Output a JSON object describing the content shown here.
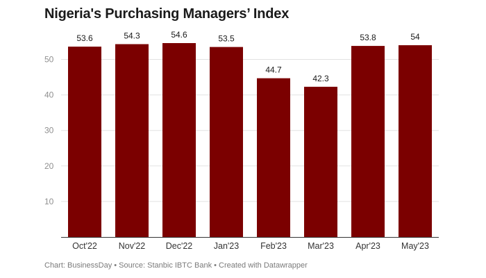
{
  "title": "Nigeria's Purchasing Managers’ Index",
  "footer": "Chart: BusinessDay • Source: Stanbic IBTC Bank • Created with Datawrapper",
  "colors": {
    "bar": "#7b0000",
    "grid": "#e2e2e2",
    "baseline": "#333333"
  },
  "chart_data": {
    "type": "bar",
    "title": "Nigeria's Purchasing Managers’ Index",
    "xlabel": "",
    "ylabel": "",
    "categories": [
      "Oct'22",
      "Nov'22",
      "Dec'22",
      "Jan'23",
      "Feb'23",
      "Mar'23",
      "Apr'23",
      "May'23"
    ],
    "values": [
      53.6,
      54.3,
      54.6,
      53.5,
      44.7,
      42.3,
      53.8,
      54
    ],
    "value_labels": [
      "53.6",
      "54.3",
      "54.6",
      "53.5",
      "44.7",
      "42.3",
      "53.8",
      "54"
    ],
    "ylim": [
      0,
      60
    ],
    "yticks": [
      10,
      20,
      30,
      40,
      50
    ],
    "ytick_labels": [
      "10",
      "20",
      "30",
      "40",
      "50"
    ],
    "grid": true,
    "legend": "none"
  }
}
